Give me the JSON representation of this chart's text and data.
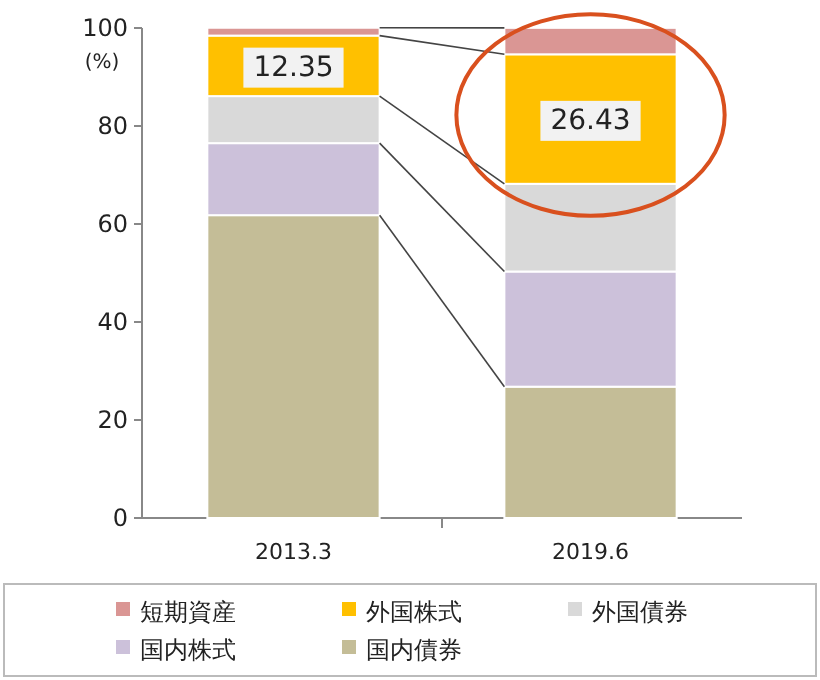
{
  "chart_data": {
    "type": "bar",
    "stacked": true,
    "ylabel": "(%)",
    "categories": [
      "2013.3",
      "2019.6"
    ],
    "ylim": [
      0,
      100
    ],
    "yticks": [
      0,
      20,
      40,
      60,
      80,
      100
    ],
    "grid": false,
    "legend": "bottom",
    "series": [
      {
        "name": "国内債券",
        "color": "#c4bd97",
        "values": [
          61.8,
          26.8
        ]
      },
      {
        "name": "国内株式",
        "color": "#ccc1da",
        "values": [
          14.7,
          23.5
        ]
      },
      {
        "name": "外国債券",
        "color": "#d9d9d9",
        "values": [
          9.6,
          17.9
        ]
      },
      {
        "name": "外国株式",
        "color": "#ffc000",
        "values": [
          12.35,
          26.43
        ],
        "value_labels": [
          "12.35",
          "26.43"
        ]
      },
      {
        "name": "短期資産",
        "color": "#da9694",
        "values": [
          1.6,
          5.4
        ]
      }
    ]
  }
}
